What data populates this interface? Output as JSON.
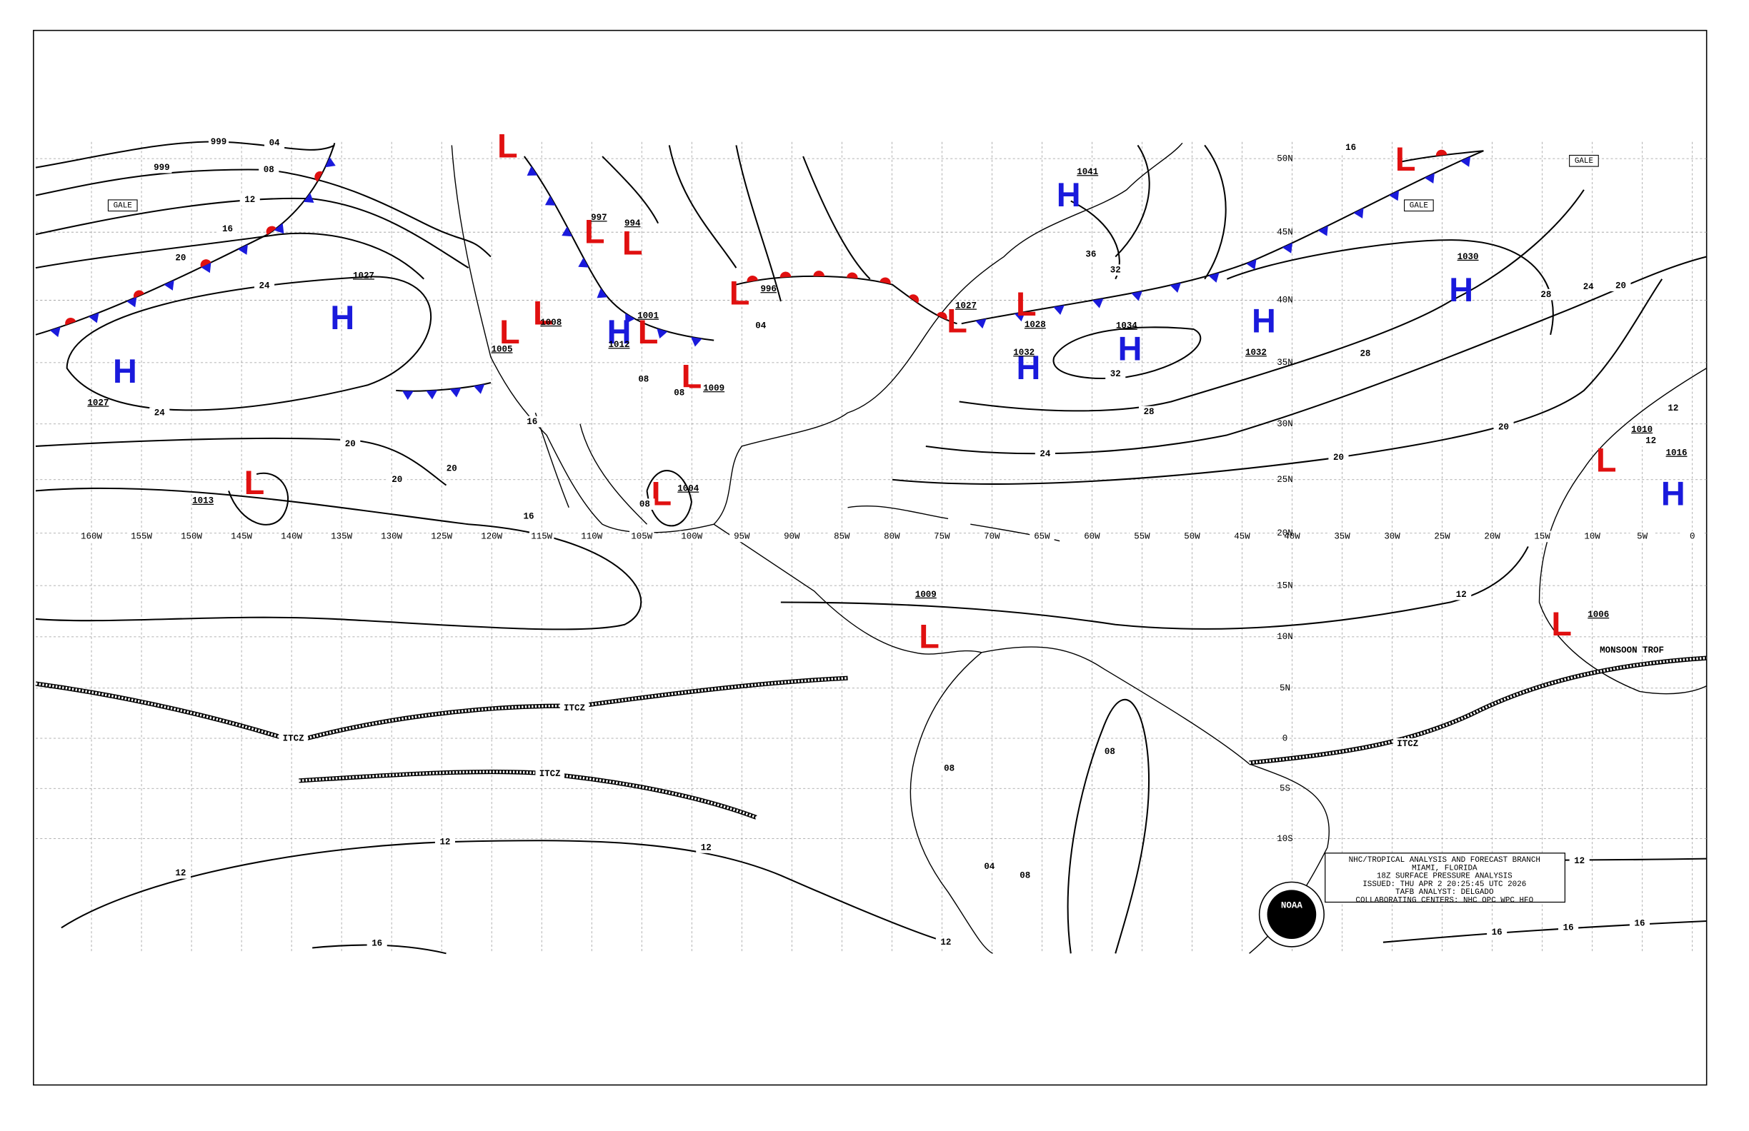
{
  "longitudes": [
    "160W",
    "155W",
    "150W",
    "145W",
    "140W",
    "135W",
    "130W",
    "125W",
    "120W",
    "115W",
    "110W",
    "105W",
    "100W",
    "95W",
    "90W",
    "85W",
    "80W",
    "75W",
    "70W",
    "65W",
    "60W",
    "55W",
    "50W",
    "45W",
    "40W",
    "35W",
    "30W",
    "25W",
    "20W",
    "15W",
    "10W",
    "5W",
    "0"
  ],
  "latitudes": [
    "50N",
    "45N",
    "40N",
    "35N",
    "30N",
    "25N",
    "20N",
    "15N",
    "10N",
    "5N",
    "0",
    "5S",
    "10S"
  ],
  "systems": [
    {
      "symbol": "H",
      "pressure": "1027"
    },
    {
      "symbol": "H",
      "pressure": "1027"
    },
    {
      "symbol": "L",
      "pressure": "1013"
    },
    {
      "symbol": "L",
      "pressure": "1005"
    },
    {
      "symbol": "L",
      "pressure": "1008"
    },
    {
      "symbol": "L",
      "pressure": "997"
    },
    {
      "symbol": "L",
      "pressure": "994"
    },
    {
      "symbol": "H",
      "pressure": "1012"
    },
    {
      "symbol": "L",
      "pressure": "1001"
    },
    {
      "symbol": "L",
      "pressure": "1009"
    },
    {
      "symbol": "L",
      "pressure": "1004"
    },
    {
      "symbol": "L",
      "pressure": "996"
    },
    {
      "symbol": "L",
      "pressure": "1027"
    },
    {
      "symbol": "L",
      "pressure": "1028"
    },
    {
      "symbol": "H",
      "pressure": "1032"
    },
    {
      "symbol": "H",
      "pressure": "1034"
    },
    {
      "symbol": "H",
      "pressure": "1041"
    },
    {
      "symbol": "H",
      "pressure": "1032"
    },
    {
      "symbol": "H",
      "pressure": "1030"
    },
    {
      "symbol": "L"
    },
    {
      "symbol": "L",
      "pressure": "1010"
    },
    {
      "symbol": "H",
      "pressure": "1016"
    },
    {
      "symbol": "L",
      "pressure": "1009"
    },
    {
      "symbol": "L",
      "pressure": "1006"
    },
    {
      "symbol": "L"
    }
  ],
  "isobar_labels": [
    "999",
    "04",
    "999",
    "08",
    "12",
    "16",
    "20",
    "24",
    "24",
    "20",
    "20",
    "20",
    "16",
    "16",
    "08",
    "08",
    "08",
    "04",
    "36",
    "32",
    "32",
    "28",
    "24",
    "28",
    "28",
    "24",
    "20",
    "20",
    "20",
    "12",
    "12",
    "12",
    "12",
    "12",
    "12",
    "12",
    "12",
    "16",
    "16",
    "16",
    "16",
    "08",
    "08",
    "04",
    "08",
    "16"
  ],
  "features": {
    "itcz": [
      "ITCZ",
      "ITCZ",
      "ITCZ",
      "ITCZ"
    ],
    "gale": [
      "GALE",
      "GALE",
      "GALE"
    ],
    "trough": "MONSOON TROF"
  },
  "info_box": [
    "NHC/TROPICAL ANALYSIS AND FORECAST BRANCH",
    "MIAMI, FLORIDA",
    "18Z SURFACE PRESSURE ANALYSIS",
    "ISSUED: THU APR 2 20:25:45 UTC 2026",
    "TAFB ANALYST: DELGADO",
    "COLLABORATING CENTERS: NHC OPC WPC HFO"
  ],
  "logo": "NOAA"
}
